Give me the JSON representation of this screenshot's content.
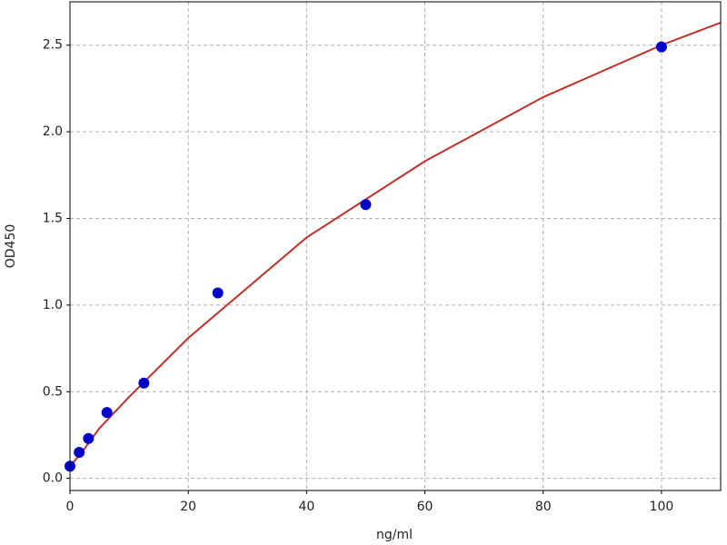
{
  "chart_data": {
    "type": "scatter",
    "x_label": "ng/ml",
    "y_label": "OD450",
    "xlim": [
      0,
      110
    ],
    "ylim": [
      -0.07,
      2.75
    ],
    "xticks": [
      0,
      20,
      40,
      60,
      80,
      100
    ],
    "yticks": [
      {
        "value": 0,
        "label": "0.0"
      },
      0.5,
      {
        "value": 1,
        "label": "1.0"
      },
      1.5,
      {
        "value": 2,
        "label": "2.0"
      },
      2.5
    ],
    "grid": true,
    "points": {
      "color": "#0000cc",
      "x": [
        0,
        1.5625,
        3.125,
        6.25,
        12.5,
        25,
        50,
        100
      ],
      "values": [
        0.07,
        0.15,
        0.23,
        0.38,
        0.55,
        1.07,
        1.58,
        2.49
      ]
    },
    "fit": {
      "color": "#c0302a",
      "x": [
        0,
        2,
        5,
        10,
        20,
        40,
        60,
        80,
        100,
        110
      ],
      "values": [
        0.07,
        0.15,
        0.29,
        0.47,
        0.81,
        1.39,
        1.83,
        2.2,
        2.5,
        2.63
      ]
    }
  }
}
